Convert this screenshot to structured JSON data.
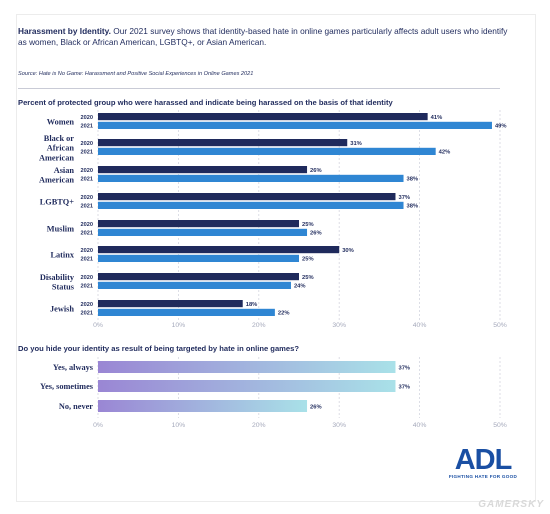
{
  "intro": {
    "lead": "Harassment by Identity.",
    "text": " Our 2021 survey shows that identity-based hate in online games particularly affects adult users who identify as women, Black or African American, LGBTQ+, or Asian American."
  },
  "source": "Source: Hate is No Game: Harassment and Positive Social Experiences in Online Games 2021",
  "colors": {
    "bar2020": "#1f2a5c",
    "bar2021": "#2f86d3",
    "gradStart": "#9a86d4",
    "gradEnd": "#a9e1e8",
    "text": "#1f2a5c"
  },
  "chart_data": [
    {
      "type": "bar",
      "orientation": "horizontal",
      "title": "Percent of protected group who were harassed and indicate being harassed on the basis of that identity",
      "categories": [
        "Women",
        "Black or African American",
        "Asian American",
        "LGBTQ+",
        "Muslim",
        "Latinx",
        "Disability Status",
        "Jewish"
      ],
      "series": [
        {
          "name": "2020",
          "values": [
            41,
            31,
            26,
            37,
            25,
            30,
            25,
            18
          ]
        },
        {
          "name": "2021",
          "values": [
            49,
            42,
            38,
            38,
            26,
            25,
            24,
            22
          ]
        }
      ],
      "xlim": [
        0,
        50
      ],
      "xticks": [
        "0%",
        "10%",
        "20%",
        "30%",
        "40%",
        "50%"
      ],
      "grid": true
    },
    {
      "type": "bar",
      "orientation": "horizontal",
      "title": "Do you hide your identity as result of being targeted by hate in online games?",
      "categories": [
        "Yes, always",
        "Yes, sometimes",
        "No, never"
      ],
      "values": [
        37,
        37,
        26
      ],
      "xlim": [
        0,
        50
      ],
      "xticks": [
        "0%",
        "10%",
        "20%",
        "30%",
        "40%",
        "50%"
      ],
      "grid": true
    }
  ],
  "logo": {
    "name": "ADL",
    "tagline": "FIGHTING HATE FOR GOOD"
  },
  "watermark": "GAMERSKY"
}
